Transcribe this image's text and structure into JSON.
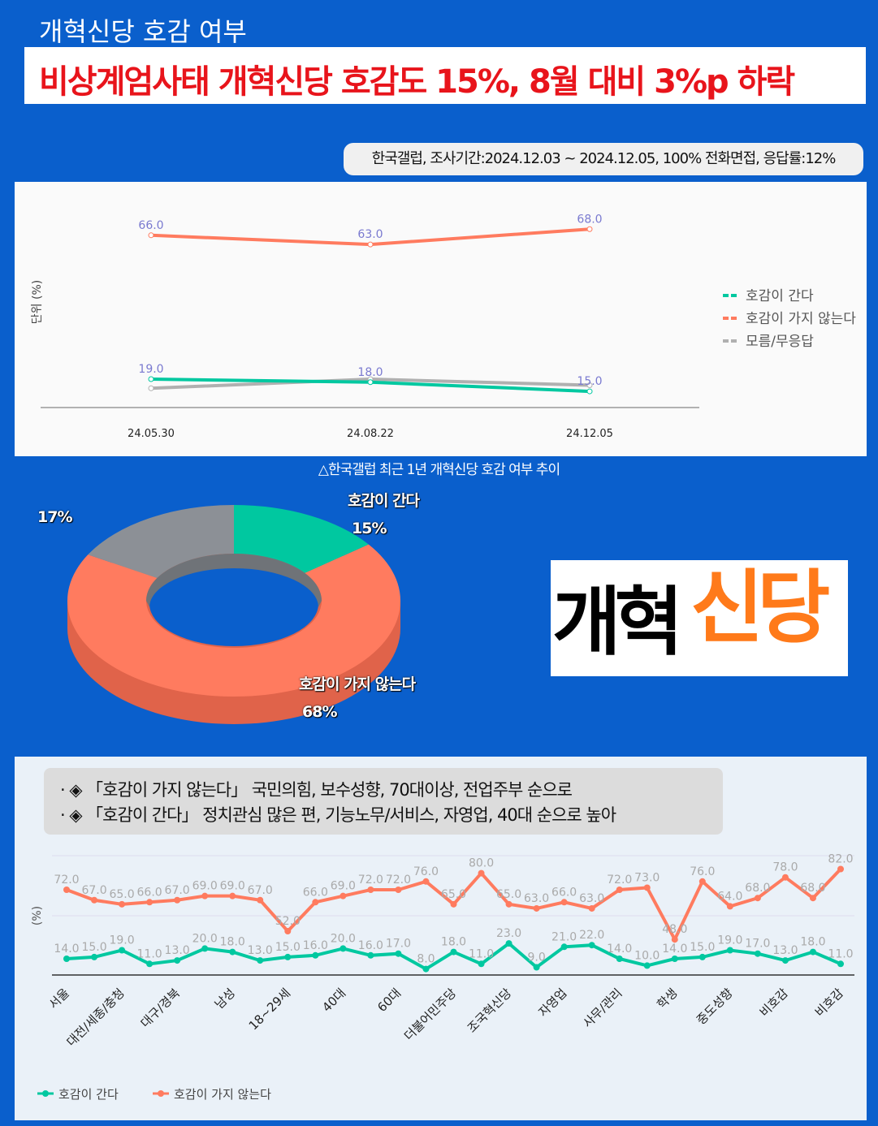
{
  "topic": "개혁신당 호감 여부",
  "headline": "비상계엄사태 개혁신당 호감도 15%, 8월 대비 3%p 하락",
  "source": "한국갤럽, 조사기간:2024.12.03 ~ 2024.12.05, 100% 전화면접, 응답률:12%",
  "caption": "△한국갤럽 최근 1년 개혁신당 호감 여부 추이",
  "logo_text": "개혁신당",
  "colors": {
    "like": "#00c8a0",
    "dislike": "#ff7b5f",
    "unknown": "#b0b0b0",
    "bg": "#0a5fcc"
  },
  "chart_data": [
    {
      "type": "line",
      "ylabel": "단위 (%)",
      "x": [
        "24.05.30",
        "24.08.22",
        "24.12.05"
      ],
      "series": [
        {
          "name": "호감이 간다",
          "values": [
            19,
            18,
            15
          ]
        },
        {
          "name": "호감이 가지 않는다",
          "values": [
            66,
            63,
            68
          ]
        },
        {
          "name": "모름/무응답",
          "values": [
            16,
            19,
            17
          ]
        }
      ],
      "ylim": [
        0,
        75
      ],
      "legend": "right"
    },
    {
      "type": "pie",
      "donut": true,
      "slices": [
        {
          "name": "호감이 간다",
          "value": 15,
          "label": "15%"
        },
        {
          "name": "호감이 가지 않는다",
          "value": 68,
          "label": "68%"
        },
        {
          "name": "모름/무응답",
          "value": 17,
          "label": "17%"
        }
      ]
    },
    {
      "type": "line",
      "ylabel": "(%)",
      "bullets": [
        "· ◈ 「호감이 가지 않는다」 국민의힘, 보수성향, 70대이상, 전업주부 순으로",
        "· ◈ 「호감이 간다」 정치관심 많은 편, 기능노무/서비스, 자영업, 40대 순으로 높아"
      ],
      "tick_labels": [
        "서울",
        "대전/세종/충청",
        "대구/경북",
        "남성",
        "18~29세",
        "40대",
        "60대",
        "더불어민주당",
        "조국혁신당",
        "자영업",
        "사무/관리",
        "학생",
        "중도성향",
        "비호감",
        "비호감"
      ],
      "series": [
        {
          "name": "호감이 간다",
          "values": [
            14,
            15,
            19,
            11,
            13,
            20,
            18,
            13,
            15,
            16,
            20,
            16,
            17,
            8,
            18,
            11,
            23,
            9,
            21,
            22,
            14,
            10,
            14,
            15,
            19,
            17,
            13,
            18,
            11
          ]
        },
        {
          "name": "호감이 가지 않는다",
          "values": [
            72,
            67,
            65,
            66,
            67,
            69,
            69,
            67,
            52,
            66,
            69,
            72,
            72,
            76,
            65,
            80,
            65,
            63,
            66,
            63,
            72,
            73,
            48,
            76,
            64,
            68,
            78,
            68,
            82
          ]
        }
      ],
      "ylim": [
        0,
        90
      ],
      "legend": "bottom-left"
    }
  ]
}
